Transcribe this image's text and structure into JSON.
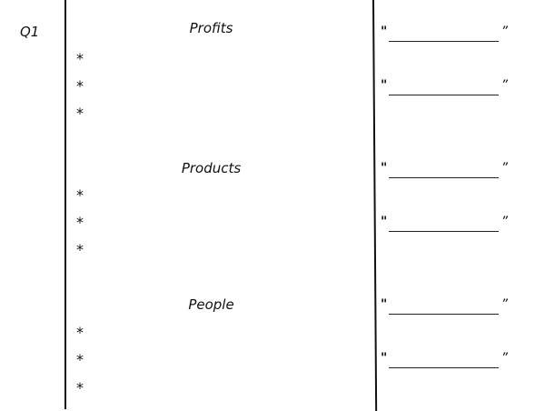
{
  "question_label": "Q1",
  "sections": [
    {
      "heading": "Profits",
      "bullets": [
        "*",
        "*",
        "*"
      ]
    },
    {
      "heading": "Products",
      "bullets": [
        "*",
        "*",
        "*"
      ]
    },
    {
      "heading": "People",
      "bullets": [
        "*",
        "*",
        "*"
      ]
    }
  ],
  "quote_marks": {
    "open": "\"",
    "close": "”"
  }
}
